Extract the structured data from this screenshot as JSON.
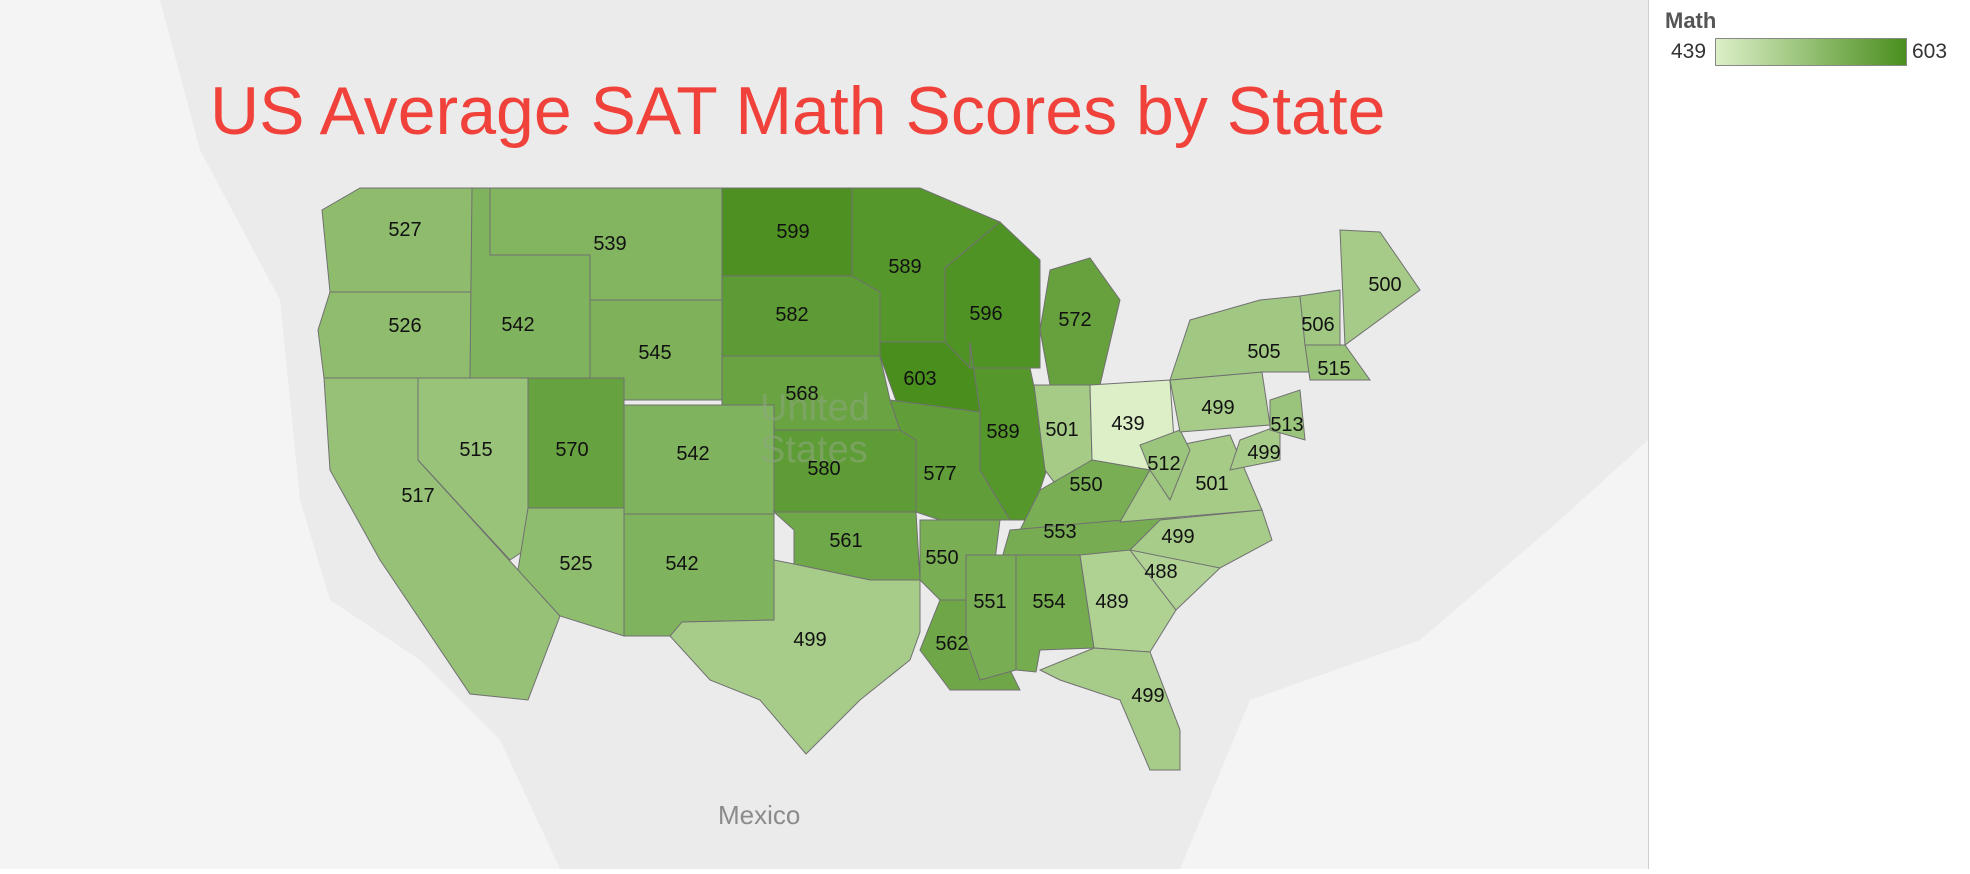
{
  "title": "US Average SAT Math Scores by State",
  "legend": {
    "title": "Math",
    "min": "439",
    "max": "603",
    "color_min": "#dcefc7",
    "color_max": "#4a8f1e"
  },
  "map_labels": {
    "country": [
      "United",
      "States"
    ],
    "neighbor": "Mexico"
  },
  "colors": {
    "title": "#f0413a",
    "land": "#ebebeb",
    "water": "#f5f5f5",
    "border": "#707070"
  },
  "states": [
    {
      "code": "WA",
      "value": 527
    },
    {
      "code": "OR",
      "value": 526
    },
    {
      "code": "CA",
      "value": 517
    },
    {
      "code": "NV",
      "value": 515
    },
    {
      "code": "ID",
      "value": 542
    },
    {
      "code": "MT",
      "value": 539
    },
    {
      "code": "WY",
      "value": 545
    },
    {
      "code": "UT",
      "value": 570
    },
    {
      "code": "CO",
      "value": 542
    },
    {
      "code": "AZ",
      "value": 525
    },
    {
      "code": "NM",
      "value": 542
    },
    {
      "code": "ND",
      "value": 599
    },
    {
      "code": "SD",
      "value": 582
    },
    {
      "code": "NE",
      "value": 568
    },
    {
      "code": "KS",
      "value": 580
    },
    {
      "code": "OK",
      "value": 561
    },
    {
      "code": "TX",
      "value": 499
    },
    {
      "code": "MN",
      "value": 589
    },
    {
      "code": "IA",
      "value": 603
    },
    {
      "code": "MO",
      "value": 577
    },
    {
      "code": "AR",
      "value": 550
    },
    {
      "code": "LA",
      "value": 562
    },
    {
      "code": "WI",
      "value": 596
    },
    {
      "code": "IL",
      "value": 589
    },
    {
      "code": "MI",
      "value": 572
    },
    {
      "code": "IN",
      "value": 501
    },
    {
      "code": "OH",
      "value": 439
    },
    {
      "code": "KY",
      "value": 550
    },
    {
      "code": "TN",
      "value": 553
    },
    {
      "code": "MS",
      "value": 551
    },
    {
      "code": "AL",
      "value": 554
    },
    {
      "code": "GA",
      "value": 489
    },
    {
      "code": "FL",
      "value": 499
    },
    {
      "code": "SC",
      "value": 488
    },
    {
      "code": "NC",
      "value": 499
    },
    {
      "code": "VA",
      "value": 501
    },
    {
      "code": "WV",
      "value": 512
    },
    {
      "code": "PA",
      "value": 499
    },
    {
      "code": "NY",
      "value": 505
    },
    {
      "code": "VT",
      "value": 506
    },
    {
      "code": "NH",
      "value": 515
    },
    {
      "code": "ME",
      "value": 500
    },
    {
      "code": "MD",
      "value": 499
    },
    {
      "code": "NJ",
      "value": 513
    }
  ]
}
